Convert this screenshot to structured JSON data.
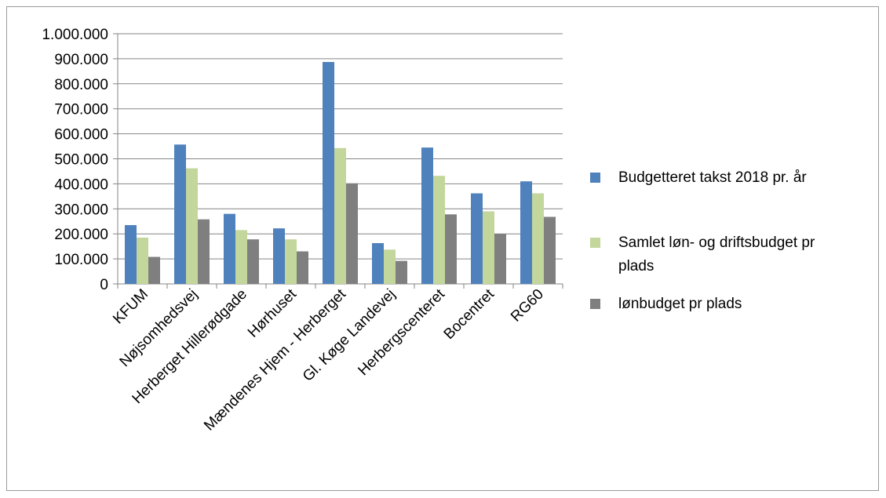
{
  "chart_data": {
    "type": "bar",
    "title": "",
    "xlabel": "",
    "ylabel": "",
    "ylim": [
      0,
      1000000
    ],
    "yticks": [
      0,
      100000,
      200000,
      300000,
      400000,
      500000,
      600000,
      700000,
      800000,
      900000,
      1000000
    ],
    "ytick_labels": [
      "0",
      "100.000",
      "200.000",
      "300.000",
      "400.000",
      "500.000",
      "600.000",
      "700.000",
      "800.000",
      "900.000",
      "1.000.000"
    ],
    "grid": true,
    "legend_position": "right",
    "categories": [
      "KFUM",
      "Nøjsomhedsvej",
      "Herberget Hillerødgade",
      "Hørhuset",
      "Mændenes Hjem - Herberget",
      "Gl. Køge Landevej",
      "Herbergscenteret",
      "Bocentret",
      "RG60"
    ],
    "series": [
      {
        "name": "Budgetteret takst 2018 pr. år",
        "color": "#4f81bd",
        "values": [
          235000,
          557000,
          280000,
          222000,
          887000,
          163000,
          545000,
          362000,
          410000
        ]
      },
      {
        "name": "Samlet løn- og driftsbudget pr plads",
        "color": "#c3d69b",
        "values": [
          185000,
          462000,
          215000,
          178000,
          543000,
          137000,
          432000,
          290000,
          362000
        ]
      },
      {
        "name": "lønbudget pr plads",
        "color": "#7f7f7f",
        "values": [
          108000,
          258000,
          178000,
          130000,
          402000,
          92000,
          278000,
          200000,
          268000
        ]
      }
    ]
  }
}
